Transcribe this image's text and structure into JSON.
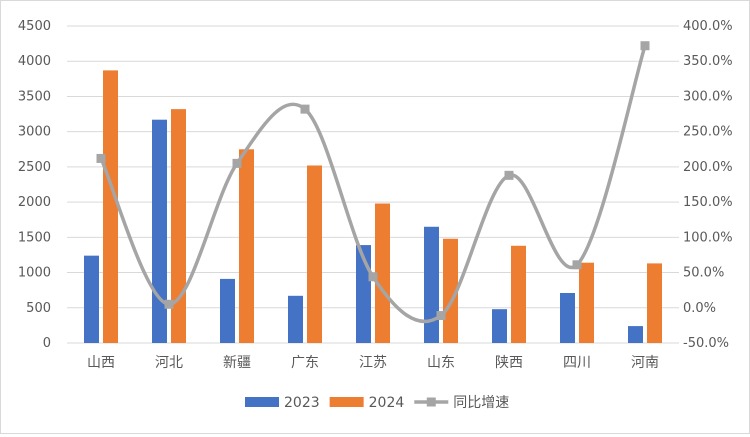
{
  "chart_data": {
    "type": "bar",
    "categories": [
      "山西",
      "河北",
      "新疆",
      "广东",
      "江苏",
      "山东",
      "陕西",
      "四川",
      "河南"
    ],
    "series": [
      {
        "name": "2023",
        "type": "bar",
        "axis": "left",
        "color": "#4472c4",
        "values": [
          1240,
          3170,
          910,
          670,
          1390,
          1650,
          480,
          710,
          240
        ]
      },
      {
        "name": "2024",
        "type": "bar",
        "axis": "left",
        "color": "#ed7d31",
        "values": [
          3870,
          3320,
          2750,
          2520,
          1980,
          1480,
          1380,
          1140,
          1130
        ]
      },
      {
        "name": "同比增速",
        "type": "line",
        "axis": "right",
        "color": "#a5a5a5",
        "smooth": true,
        "values": [
          212,
          5,
          205,
          282,
          44,
          -11,
          188,
          61,
          372
        ]
      }
    ],
    "y_left": {
      "min": 0,
      "max": 4500,
      "step": 500,
      "ticks": [
        "0",
        "500",
        "1000",
        "1500",
        "2000",
        "2500",
        "3000",
        "3500",
        "4000",
        "4500"
      ]
    },
    "y_right": {
      "min": -50,
      "max": 400,
      "step": 50,
      "ticks": [
        "-50.0%",
        "0.0%",
        "50.0%",
        "100.0%",
        "150.0%",
        "200.0%",
        "250.0%",
        "300.0%",
        "350.0%",
        "400.0%"
      ]
    },
    "grid": true,
    "legend_position": "bottom"
  }
}
